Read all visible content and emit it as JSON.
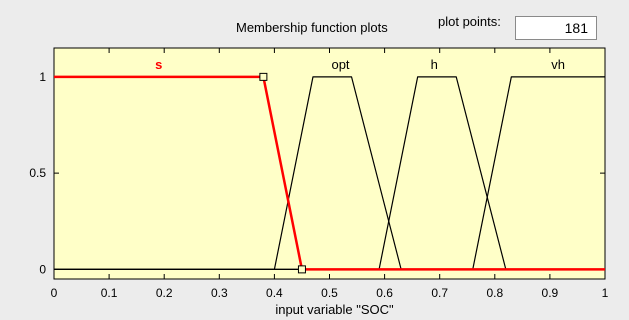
{
  "header": {
    "title": "Membership function plots",
    "plot_points_label": "plot points:",
    "plot_points_value": "181"
  },
  "colors": {
    "plot_background": "#ffffc8",
    "selected_function": "#ff0000",
    "function_line": "#000000",
    "panel_background": "#ececec"
  },
  "chart_data": {
    "type": "line",
    "xlabel": "input variable \"SOC\"",
    "ylabel": "",
    "xlim": [
      0,
      1
    ],
    "ylim": [
      -0.05,
      1.15
    ],
    "x_ticks": [
      "0",
      "0.1",
      "0.2",
      "0.3",
      "0.4",
      "0.5",
      "0.6",
      "0.7",
      "0.8",
      "0.9",
      "1"
    ],
    "y_ticks": [
      "0",
      "0.5",
      "1"
    ],
    "grid": false,
    "selected_series": "s",
    "series": [
      {
        "name": "s",
        "x": [
          0,
          0.38,
          0.45,
          1
        ],
        "values": [
          1,
          1,
          0,
          0
        ]
      },
      {
        "name": "opt",
        "x": [
          0,
          0.4,
          0.47,
          0.54,
          0.63,
          1
        ],
        "values": [
          0,
          0,
          1,
          1,
          0,
          0
        ]
      },
      {
        "name": "h",
        "x": [
          0,
          0.59,
          0.66,
          0.73,
          0.82,
          1
        ],
        "values": [
          0,
          0,
          1,
          1,
          0,
          0
        ]
      },
      {
        "name": "vh",
        "x": [
          0,
          0.76,
          0.83,
          1
        ],
        "values": [
          0,
          0,
          1,
          1
        ]
      }
    ],
    "labels": [
      {
        "text": "s",
        "x": 0.19
      },
      {
        "text": "opt",
        "x": 0.52
      },
      {
        "text": "h",
        "x": 0.69
      },
      {
        "text": "vh",
        "x": 0.915
      }
    ]
  }
}
